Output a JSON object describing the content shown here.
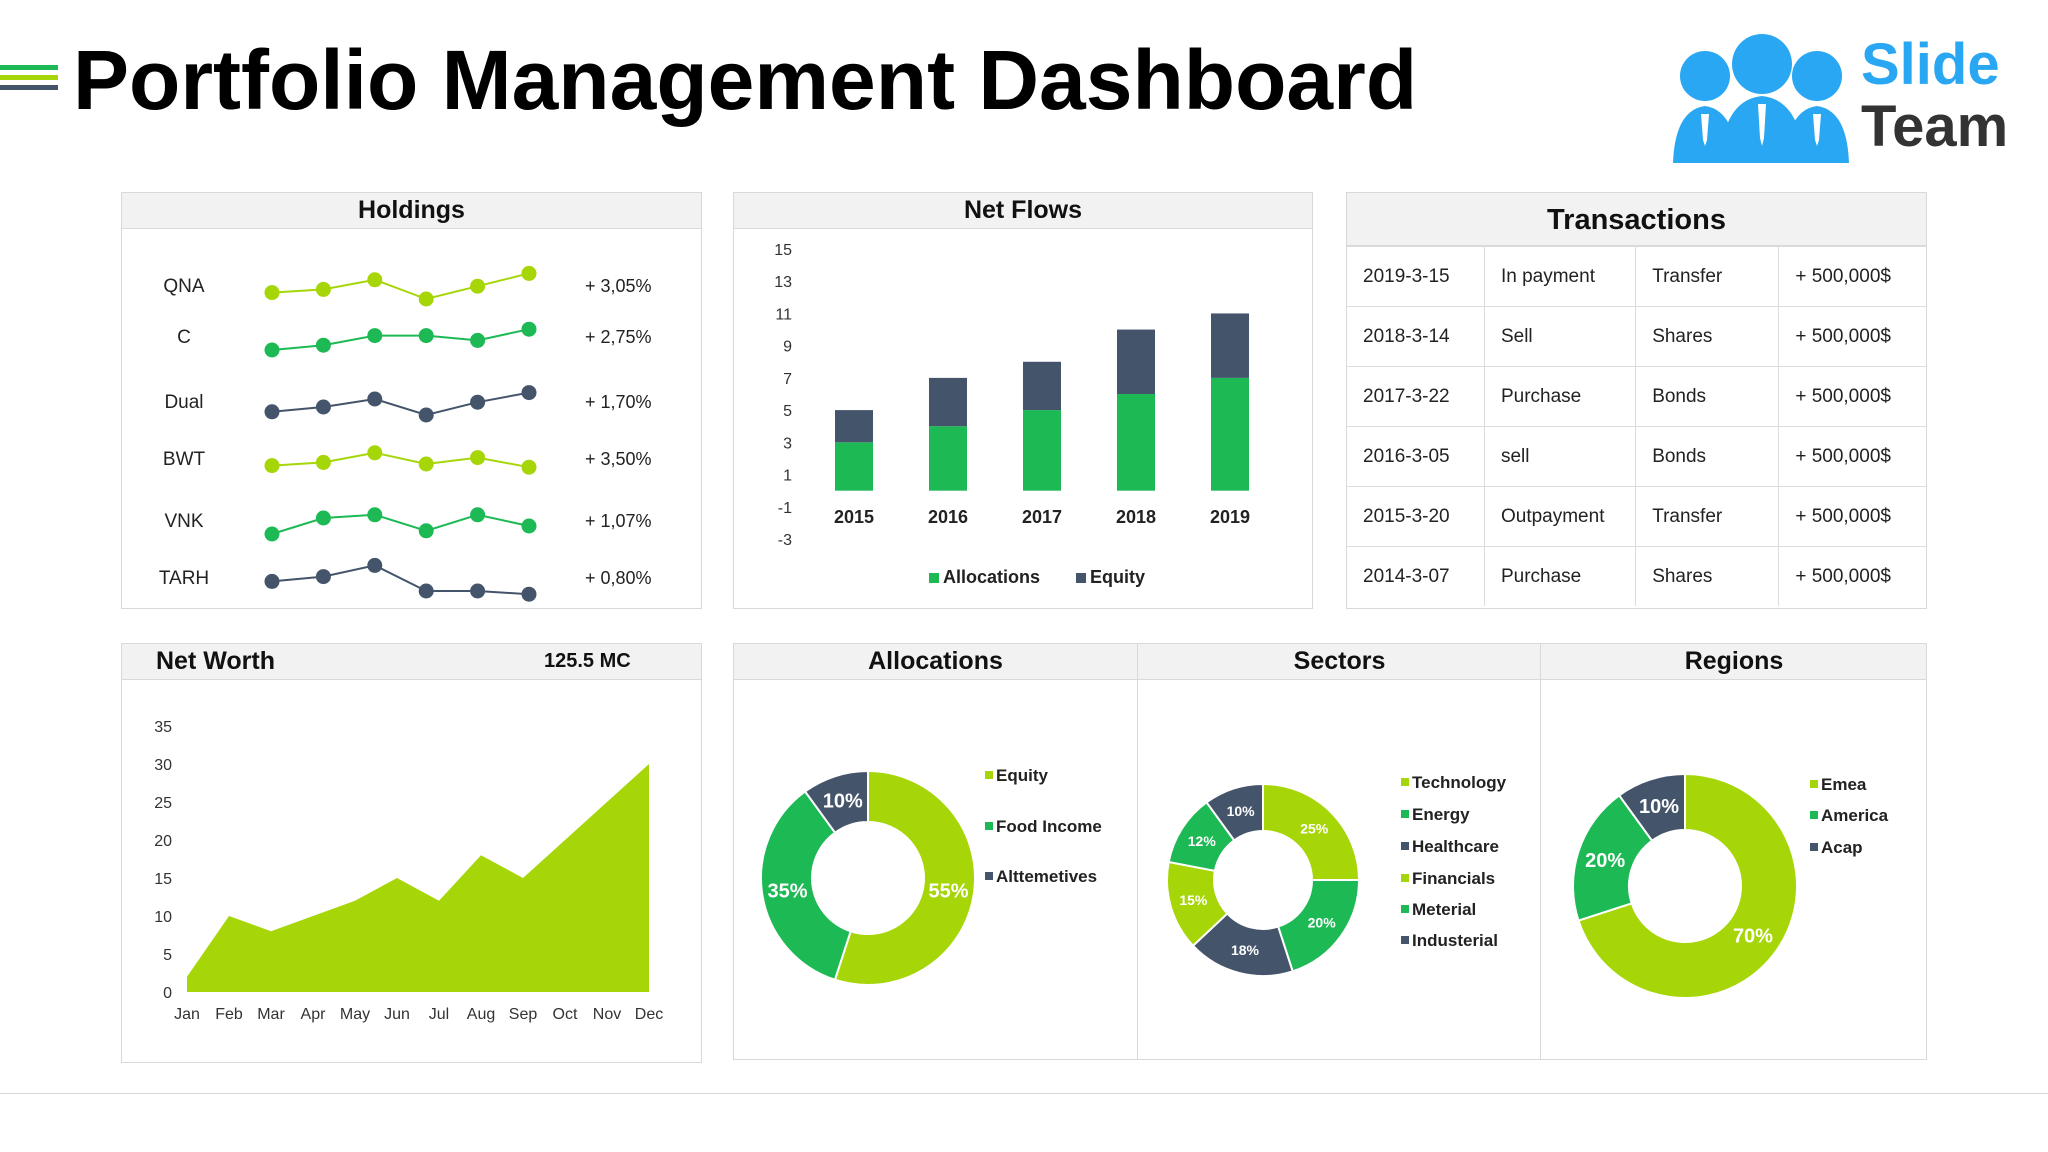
{
  "title": "Portfolio Management Dashboard",
  "logo": {
    "line1": "Slide",
    "line2": "Team"
  },
  "colors": {
    "lime": "#a6d608",
    "green": "#1db954",
    "navy": "#44546a",
    "blue": "#2aa7f2"
  },
  "holdings": {
    "title": "Holdings",
    "rows": [
      {
        "name": "QNA",
        "change": "+ 3,05%",
        "color": "#a6d608",
        "points": [
          2,
          3,
          6,
          0,
          4,
          8
        ]
      },
      {
        "name": "C",
        "change": "+ 2,75%",
        "color": "#1db954",
        "points": [
          0,
          1.5,
          4.5,
          4.5,
          3,
          6.5
        ]
      },
      {
        "name": "Dual",
        "change": "+ 1,70%",
        "color": "#44546a",
        "points": [
          1,
          2.5,
          5,
          0,
          4,
          7
        ]
      },
      {
        "name": "BWT",
        "change": "+ 3,50%",
        "color": "#a6d608",
        "points": [
          2,
          3,
          6,
          2.5,
          4.5,
          1.5
        ]
      },
      {
        "name": "VNK",
        "change": "+ 1,07%",
        "color": "#1db954",
        "points": [
          0,
          5,
          6,
          1,
          6,
          2.5
        ]
      },
      {
        "name": "TARH",
        "change": "+ 0,80%",
        "color": "#44546a",
        "points": [
          3,
          4.5,
          8,
          0,
          0,
          -1
        ]
      }
    ]
  },
  "transactions": {
    "title": "Transactions",
    "rows": [
      [
        "2019-3-15",
        "In payment",
        "Transfer",
        "+ 500,000$"
      ],
      [
        "2018-3-14",
        "Sell",
        "Shares",
        "+ 500,000$"
      ],
      [
        "2017-3-22",
        "Purchase",
        "Bonds",
        "+ 500,000$"
      ],
      [
        "2016-3-05",
        "sell",
        "Bonds",
        "+ 500,000$"
      ],
      [
        "2015-3-20",
        "Outpayment",
        "Transfer",
        "+ 500,000$"
      ],
      [
        "2014-3-07",
        "Purchase",
        "Shares",
        "+ 500,000$"
      ]
    ]
  },
  "chart_data": [
    {
      "id": "net-flows",
      "type": "bar",
      "stacked": true,
      "title": "Net Flows",
      "categories": [
        "2015",
        "2016",
        "2017",
        "2018",
        "2019"
      ],
      "series": [
        {
          "name": "Allocations",
          "color": "#1db954",
          "values": [
            3,
            4,
            5,
            6,
            7
          ]
        },
        {
          "name": "Equity",
          "color": "#44546a",
          "values": [
            2,
            3,
            3,
            4,
            4
          ]
        }
      ],
      "yticks": [
        "15",
        "13",
        "11",
        "9",
        "7",
        "5",
        "3",
        "1",
        "-1",
        "-3"
      ],
      "ylim": [
        -3,
        15
      ],
      "legend": "bottom"
    },
    {
      "id": "net-worth",
      "type": "area",
      "title": "Net Worth",
      "value_label": "125.5 MC",
      "categories": [
        "Jan",
        "Feb",
        "Mar",
        "Apr",
        "May",
        "Jun",
        "Jul",
        "Aug",
        "Sep",
        "Oct",
        "Nov",
        "Dec"
      ],
      "values": [
        2,
        10,
        8,
        10,
        12,
        15,
        12,
        18,
        15,
        20,
        25,
        30
      ],
      "yticks": [
        "35",
        "30",
        "25",
        "20",
        "15",
        "10",
        "5",
        "0"
      ],
      "ylim": [
        0,
        35
      ],
      "color": "#a6d608"
    },
    {
      "id": "allocations",
      "type": "pie",
      "donut": true,
      "title": "Allocations",
      "slices": [
        {
          "label": "Equity",
          "value": 55,
          "text": "55%",
          "color": "#a6d608"
        },
        {
          "label": "Food Income",
          "value": 35,
          "text": "35%",
          "color": "#1db954"
        },
        {
          "label": "Alttemetives",
          "value": 10,
          "text": "10%",
          "color": "#44546a"
        }
      ]
    },
    {
      "id": "sectors",
      "type": "pie",
      "donut": true,
      "title": "Sectors",
      "slices": [
        {
          "label": "Technology",
          "value": 25,
          "text": "25%",
          "color": "#a6d608"
        },
        {
          "label": "Energy",
          "value": 20,
          "text": "20%",
          "color": "#1db954"
        },
        {
          "label": "Healthcare",
          "value": 18,
          "text": "18%",
          "color": "#44546a"
        },
        {
          "label": "Financials",
          "value": 15,
          "text": "15%",
          "color": "#a6d608"
        },
        {
          "label": "Meterial",
          "value": 12,
          "text": "12%",
          "color": "#1db954"
        },
        {
          "label": "Industerial",
          "value": 10,
          "text": "10%",
          "color": "#44546a"
        }
      ]
    },
    {
      "id": "regions",
      "type": "pie",
      "donut": true,
      "title": "Regions",
      "slices": [
        {
          "label": "Emea",
          "value": 70,
          "text": "70%",
          "color": "#a6d608"
        },
        {
          "label": "America",
          "value": 20,
          "text": "20%",
          "color": "#1db954"
        },
        {
          "label": "Acap",
          "value": 10,
          "text": "10%",
          "color": "#44546a"
        }
      ]
    }
  ]
}
